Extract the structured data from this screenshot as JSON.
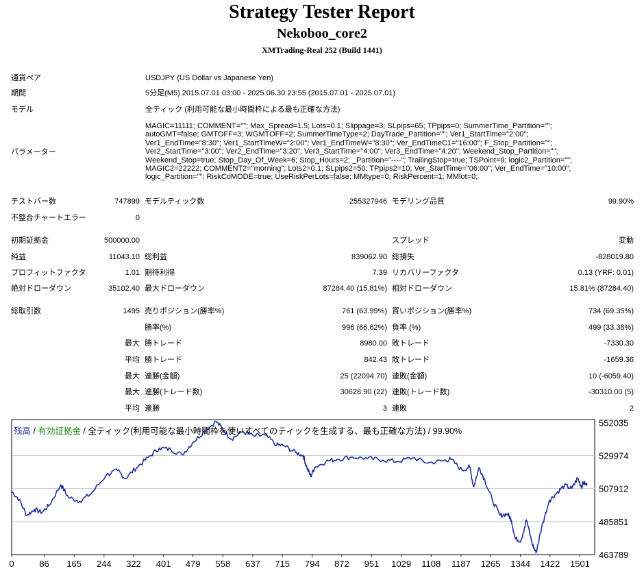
{
  "header": {
    "title": "Strategy Tester Report",
    "ea_name": "Nekoboo_core2",
    "server": "XMTrading-Real 252 (Build 1441)"
  },
  "settings": {
    "symbol_label": "通貨ペア",
    "symbol_value": "USDJPY (US Dollar vs Japanese Yen)",
    "period_label": "期間",
    "period_value": "5分足(M5) 2015.07.01 03:00 - 2025.06.30 23:55 (2015.07.01 - 2025.07.01)",
    "model_label": "モデル",
    "model_value": "全ティック (利用可能な最小時間枠による最も正確な方法)",
    "params_label": "パラメーター",
    "params_lines": [
      "MAGIC=11111; COMMENT=\"\"; Max_Spread=1.5; Lots=0.1; Slippage=3; SLpips=65; TPpips=0; SummerTime_Partition=\"\";",
      "autoGMT=false; GMTOFF=3; WGMTOFF=2; SummerTimeType=2; DayTrade_Partition=\"\"; Ver1_StartTime=\"2:00\";",
      "Ver1_EndTime=\"8:30\"; Ver1_StartTimeW=\"2:00\"; Ver1_EndTimeW=\"8:30\"; Ver_EndTimeC1=\"16:00\"; F_Stop_Partition=\"\";",
      "Ver2_StartTime=\"3:00\"; Ver2_EndTime=\"3:20\"; Ver3_StartTime=\"4:00\"; Ver3_EndTime=\"4:20\"; Weekend_Stop_Partition=\"\";",
      "Weekend_Stop=true; Stop_Day_Of_Week=6; Stop_Hours=2; _Partition=\"----\"; TrailingStop=true; TSPoint=9; logic2_Partition=\"\";",
      "MAGIC2=22222; COMMENT2=\"morning\"; Lots2=0.1; SLpips2=50; TPpips2=10; Ver_StartTime=\"06:00\"; Ver_EndTime=\"10:00\";",
      "logic_Partition=\"\"; RiskCoMODE=true; UseRiskPerLots=false; MMtype=0; RiskPercent=1; MMlot=0;"
    ]
  },
  "stats": {
    "bars_label": "テストバー数",
    "bars_value": "747899",
    "ticks_label": "モデルティック数",
    "ticks_value": "255327946",
    "quality_label": "モデリング品質",
    "quality_value": "99.90%",
    "mismatch_label": "不整合チャートエラー",
    "mismatch_value": "0",
    "deposit_label": "初期証拠金",
    "deposit_value": "500000.00",
    "spread_label": "スプレッド",
    "spread_value": "変動",
    "net_label": "純益",
    "net_value": "11043.10",
    "gross_profit_label": "総利益",
    "gross_profit_value": "839062.90",
    "gross_loss_label": "総損失",
    "gross_loss_value": "-828019.80",
    "pf_label": "プロフィットファクタ",
    "pf_value": "1.01",
    "payoff_label": "期待利得",
    "payoff_value": "7.39",
    "rf_label": "リカバリーファクタ",
    "rf_value": "0.13 (YRF: 0.01)",
    "abs_dd_label": "絶対ドローダウン",
    "abs_dd_value": "35102.40",
    "max_dd_label": "最大ドローダウン",
    "max_dd_value": "87284.40 (15.81%)",
    "rel_dd_label": "相対ドローダウン",
    "rel_dd_value": "15.81% (87284.40)",
    "trades_label": "総取引数",
    "trades_value": "1495",
    "short_label": "売りポジション(勝率%)",
    "short_value": "761 (63.99%)",
    "long_label": "買いポジション(勝率%)",
    "long_value": "734 (69.35%)",
    "win_rate_label": "勝率(%)",
    "win_rate_value": "996 (66.62%)",
    "loss_rate_label": "負率 (%)",
    "loss_rate_value": "499 (33.38%)",
    "max_word": "最大",
    "avg_word": "平均",
    "largest_win_label": "勝トレード",
    "largest_win_value": "8980.00",
    "largest_loss_label": "敗トレード",
    "largest_loss_value": "-7330.30",
    "avg_win_label": "勝トレード",
    "avg_win_value": "842.43",
    "avg_loss_label": "敗トレード",
    "avg_loss_value": "-1659.36",
    "max_cons_wins_label": "連勝(金額)",
    "max_cons_wins_value": "25 (22094.70)",
    "max_cons_losses_label": "連敗(金額)",
    "max_cons_losses_value": "10 (-6059.40)",
    "max_cons_profit_label": "連勝(トレード数)",
    "max_cons_profit_value": "30628.90 (22)",
    "max_cons_loss_label": "連敗(トレード数)",
    "max_cons_loss_value": "-30310.00 (5)",
    "avg_cons_wins_label": "連勝",
    "avg_cons_wins_value": "3",
    "avg_cons_losses_label": "連敗",
    "avg_cons_losses_value": "2"
  },
  "legend": {
    "balance": "残高",
    "sep1": " / ",
    "equity": "有効証拠金",
    "rest": " / 全ティック(利用可能な最小時間枠を使いすべてのティックを生成する、最も正確な方法) / 99.90%"
  },
  "colors": {
    "balance_line": "#1e2d9b",
    "equity_text": "#1f8a1f",
    "grid": "#c8c8c8"
  },
  "chart_data": {
    "type": "line",
    "x_ticks": [
      "0",
      "86",
      "165",
      "244",
      "322",
      "401",
      "479",
      "558",
      "637",
      "715",
      "794",
      "872",
      "951",
      "1029",
      "1108",
      "1187",
      "1265",
      "1344",
      "1422",
      "1501"
    ],
    "y_ticks": [
      "552035",
      "529974",
      "507912",
      "485851",
      "463789"
    ],
    "xlim": [
      0,
      1540
    ],
    "ylim": [
      463789,
      554000
    ],
    "series": [
      {
        "name": "残高",
        "x": [
          0,
          20,
          40,
          60,
          80,
          100,
          130,
          150,
          180,
          210,
          250,
          280,
          300,
          330,
          360,
          390,
          420,
          450,
          480,
          510,
          540,
          560,
          580,
          610,
          640,
          670,
          700,
          720,
          750,
          770,
          780,
          790,
          800,
          830,
          860,
          900,
          940,
          980,
          1020,
          1060,
          1100,
          1140,
          1160,
          1190,
          1210,
          1220,
          1235,
          1250,
          1270,
          1290,
          1310,
          1320,
          1330,
          1345,
          1360,
          1375,
          1385,
          1400,
          1420,
          1440,
          1460,
          1480,
          1495,
          1505,
          1510,
          1520
        ],
        "y": [
          506000,
          500500,
          490000,
          494000,
          492000,
          497000,
          510500,
          502000,
          499500,
          504500,
          517000,
          520000,
          514500,
          522000,
          528500,
          535000,
          534000,
          530500,
          539000,
          546500,
          552800,
          547000,
          541000,
          546000,
          543000,
          543500,
          537000,
          536500,
          532000,
          530000,
          522000,
          516000,
          522000,
          526000,
          527500,
          529000,
          528000,
          527000,
          526000,
          528500,
          525000,
          526500,
          527500,
          520000,
          522500,
          509000,
          522000,
          513500,
          500000,
          490000,
          491000,
          487000,
          474500,
          473000,
          487000,
          471000,
          465000,
          482000,
          500000,
          505000,
          510000,
          508000,
          515000,
          509000,
          512000,
          510000
        ]
      }
    ]
  }
}
